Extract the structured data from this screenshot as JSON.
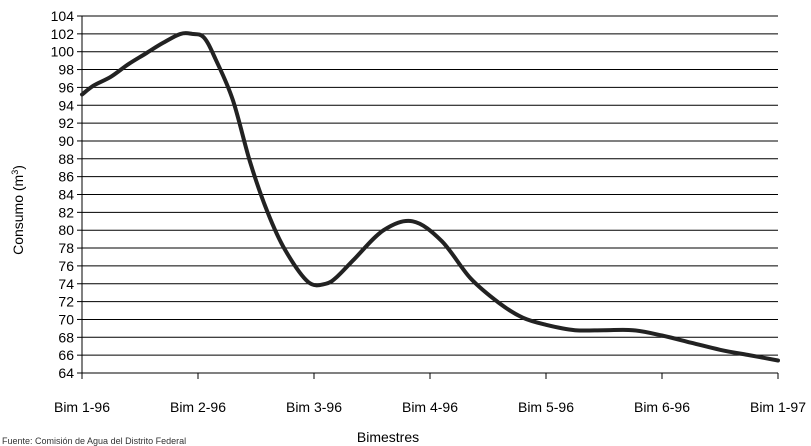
{
  "chart_data": {
    "type": "line",
    "ylabel": "Consumo (m",
    "ylabel_sup": "3",
    "ylabel_suffix": ")",
    "xlabel": "Bimestres",
    "categories": [
      "Bim 1-96",
      "Bim 2-96",
      "Bim 3-96",
      "Bim 4-96",
      "Bim 5-96",
      "Bim 6-96",
      "Bim 1-97"
    ],
    "ylim": [
      64,
      104
    ],
    "ystep": 2,
    "grid": true,
    "line_color": "#222222",
    "series": [
      {
        "x": [
          0,
          0.1,
          0.25,
          0.4,
          0.55,
          0.7,
          0.85,
          0.95,
          1.05,
          1.15,
          1.3,
          1.45,
          1.6,
          1.75,
          1.95,
          2.1,
          2.2,
          2.35,
          2.6,
          2.85,
          3.1,
          3.35,
          3.6,
          3.8,
          4.0,
          4.25,
          4.5,
          4.75,
          5.0,
          5.25,
          5.5,
          5.75,
          6.0
        ],
        "y": [
          95.2,
          96.2,
          97.2,
          98.6,
          99.8,
          101.0,
          102.0,
          102.0,
          101.6,
          99.2,
          94.6,
          87.6,
          82.0,
          77.8,
          74.2,
          74.0,
          74.8,
          76.8,
          80.0,
          81.0,
          78.8,
          74.6,
          71.8,
          70.2,
          69.4,
          68.8,
          68.8,
          68.8,
          68.2,
          67.4,
          66.6,
          66.0,
          65.4
        ]
      }
    ]
  },
  "footnote": "Fuente: Comisión de Agua del Distrito Federal"
}
